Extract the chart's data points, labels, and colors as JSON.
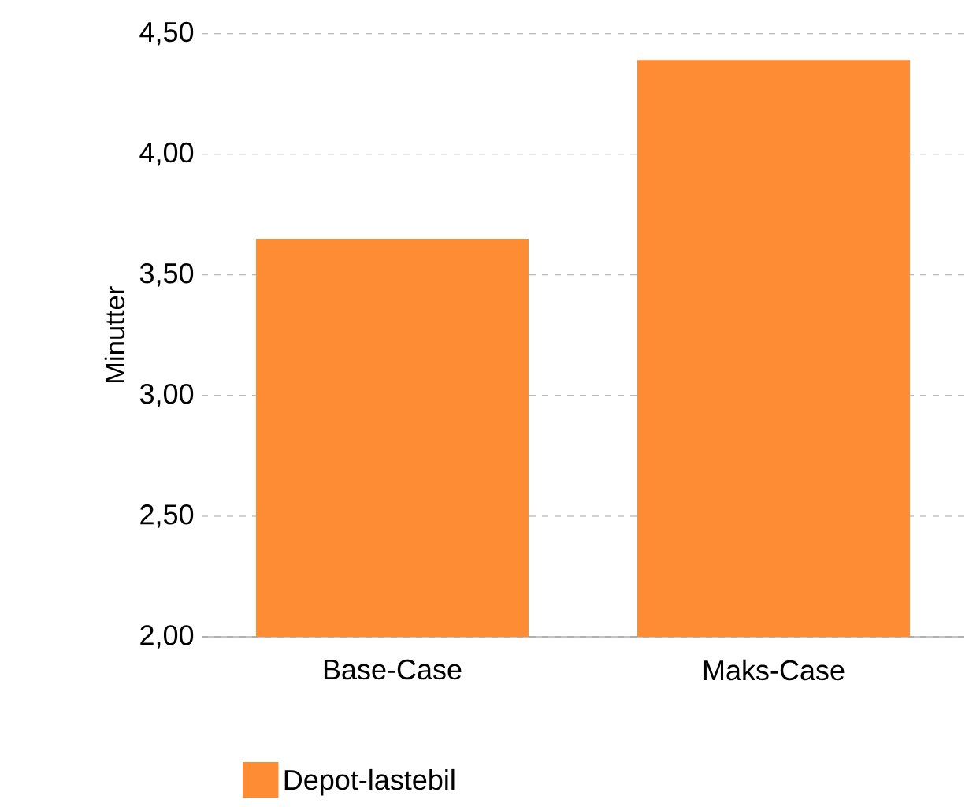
{
  "chart_data": {
    "type": "bar",
    "ylabel": "Minutter",
    "categories": [
      "Base-Case",
      "Maks-Case"
    ],
    "series": [
      {
        "name": "Depot-lastebil",
        "color": "#fd8c34",
        "values": [
          3.65,
          4.39
        ]
      }
    ],
    "ylim": [
      2,
      4.5
    ],
    "yticks": [
      {
        "value": 2,
        "label": "2,00"
      },
      {
        "value": 2.5,
        "label": "2,50"
      },
      {
        "value": 3,
        "label": "3,00"
      },
      {
        "value": 3.5,
        "label": "3,50"
      },
      {
        "value": 4,
        "label": "4,00"
      },
      {
        "value": 4.5,
        "label": "4,50"
      }
    ],
    "grid": "y",
    "legend": "bottom left"
  }
}
